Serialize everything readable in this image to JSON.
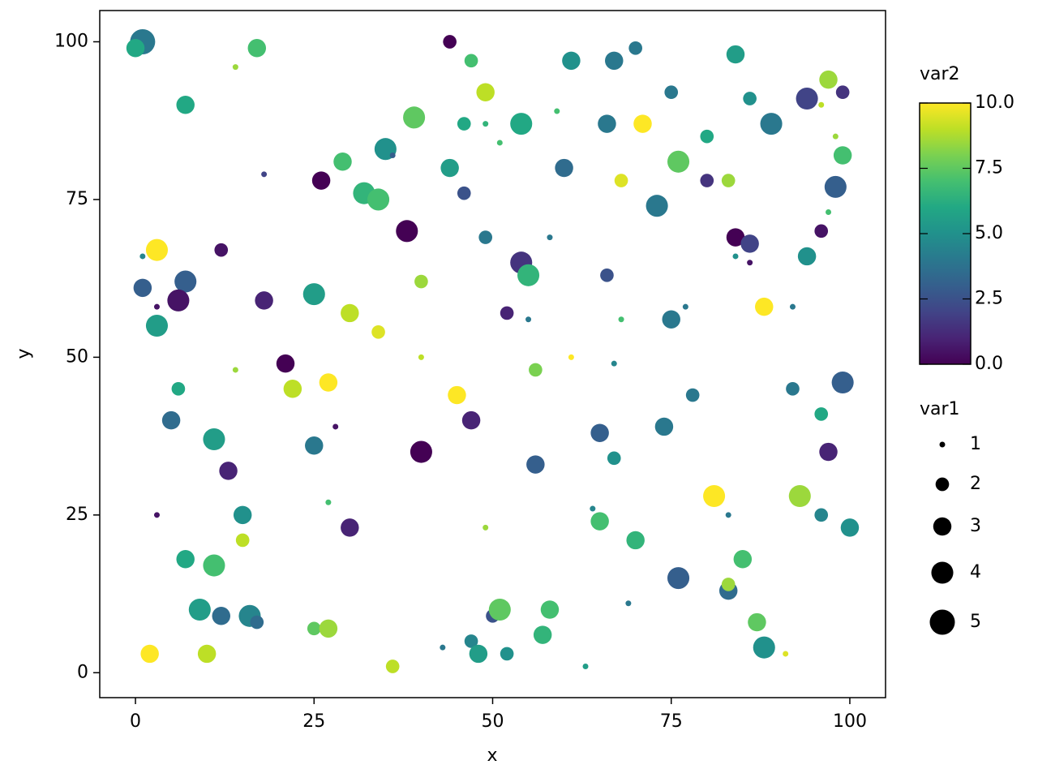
{
  "chart_data": {
    "type": "scatter",
    "x_label": "x",
    "y_label": "y",
    "xlim": [
      -5,
      105
    ],
    "ylim": [
      -3.95,
      104.95
    ],
    "xticks": [
      0,
      25,
      50,
      75,
      100
    ],
    "yticks": [
      0,
      25,
      50,
      75,
      100
    ],
    "colormap": "viridis",
    "x": [
      1,
      0,
      17,
      14,
      44,
      47,
      49,
      61,
      67,
      70,
      84,
      97,
      94,
      99,
      96,
      7,
      39,
      46,
      49,
      54,
      59,
      66,
      71,
      75,
      80,
      86,
      89,
      98,
      99,
      18,
      26,
      29,
      32,
      34,
      35,
      36,
      44,
      46,
      51,
      60,
      68,
      76,
      80,
      83,
      98,
      73,
      97,
      96,
      38,
      49,
      58,
      84,
      86,
      86,
      84,
      94,
      3,
      1,
      12,
      54,
      55,
      66,
      1,
      7,
      6,
      3,
      3,
      18,
      25,
      30,
      34,
      40,
      52,
      55,
      68,
      75,
      77,
      88,
      92,
      14,
      21,
      22,
      27,
      40,
      45,
      56,
      61,
      67,
      78,
      92,
      99,
      6,
      5,
      11,
      28,
      25,
      13,
      40,
      47,
      65,
      67,
      74,
      56,
      96,
      97,
      3,
      15,
      27,
      30,
      15,
      7,
      11,
      9,
      12,
      16,
      17,
      25,
      27,
      2,
      10,
      36,
      43,
      47,
      48,
      50,
      51,
      52,
      49,
      58,
      57,
      63,
      64,
      65,
      70,
      69,
      76,
      81,
      83,
      83,
      83,
      85,
      87,
      88,
      91,
      93,
      96,
      100
    ],
    "y": [
      100,
      99,
      99,
      96,
      100,
      97,
      92,
      97,
      97,
      99,
      98,
      94,
      91,
      92,
      90,
      90,
      88,
      87,
      87,
      87,
      89,
      87,
      87,
      92,
      85,
      91,
      87,
      85,
      82,
      79,
      78,
      81,
      76,
      75,
      83,
      82,
      80,
      76,
      84,
      80,
      78,
      81,
      78,
      78,
      77,
      74,
      73,
      70,
      70,
      69,
      69,
      69,
      68,
      65,
      66,
      66,
      67,
      66,
      67,
      65,
      63,
      63,
      61,
      62,
      59,
      58,
      55,
      59,
      60,
      57,
      54,
      62,
      57,
      56,
      56,
      56,
      58,
      58,
      58,
      48,
      49,
      45,
      46,
      50,
      44,
      48,
      50,
      49,
      44,
      45,
      46,
      45,
      40,
      37,
      39,
      36,
      32,
      35,
      40,
      38,
      34,
      39,
      33,
      41,
      35,
      25,
      25,
      27,
      23,
      21,
      18,
      17,
      10,
      9,
      9,
      8,
      7,
      7,
      3,
      3,
      1,
      4,
      5,
      3,
      9,
      10,
      3,
      23,
      10,
      6,
      1,
      26,
      24,
      21,
      11,
      15,
      28,
      25,
      13,
      14,
      18,
      8,
      4,
      3,
      28,
      25,
      23
    ],
    "size": [
      5,
      3,
      3,
      1,
      2,
      2,
      3,
      3,
      3,
      2,
      3,
      3,
      4,
      2,
      1,
      3,
      4,
      2,
      1,
      4,
      1,
      3,
      3,
      2,
      2,
      2,
      4,
      1,
      3,
      1,
      3,
      3,
      4,
      4,
      4,
      1,
      3,
      2,
      1,
      3,
      2,
      4,
      2,
      2,
      4,
      4,
      1,
      2,
      4,
      2,
      1,
      3,
      3,
      1,
      1,
      3,
      4,
      1,
      2,
      4,
      4,
      2,
      3,
      4,
      4,
      1,
      4,
      3,
      4,
      3,
      2,
      2,
      2,
      1,
      1,
      3,
      1,
      3,
      1,
      1,
      3,
      3,
      3,
      1,
      3,
      2,
      1,
      1,
      2,
      2,
      4,
      2,
      3,
      4,
      1,
      3,
      3,
      4,
      3,
      3,
      2,
      3,
      3,
      2,
      3,
      1,
      3,
      1,
      3,
      2,
      3,
      4,
      4,
      3,
      4,
      2,
      2,
      3,
      3,
      3,
      2,
      1,
      2,
      3,
      2,
      4,
      2,
      1,
      3,
      3,
      1,
      1,
      3,
      3,
      1,
      4,
      4,
      1,
      3,
      2,
      3,
      3,
      4,
      1,
      4,
      2,
      3
    ],
    "color": [
      4,
      6,
      7,
      8.5,
      0,
      7,
      9,
      5,
      4,
      4,
      5.5,
      8.5,
      2,
      1.5,
      9,
      6,
      7.5,
      6,
      6.5,
      6,
      7,
      4,
      10,
      4,
      6,
      5,
      4,
      8.5,
      7,
      2,
      0,
      7,
      6.5,
      7,
      5,
      3,
      5.5,
      2.5,
      7,
      3.5,
      9.5,
      7.5,
      1.5,
      8.5,
      3,
      4,
      7,
      0.5,
      0,
      4,
      4,
      0,
      2,
      0.5,
      5,
      5,
      10,
      4.5,
      0.5,
      1.5,
      6.5,
      2.5,
      3,
      3,
      0.5,
      0.5,
      5.5,
      1,
      5.5,
      9,
      9.5,
      8.5,
      1,
      4,
      7,
      4,
      4,
      10,
      4,
      8.5,
      0,
      9,
      10,
      9,
      10,
      8,
      10,
      4.5,
      4,
      4,
      3,
      6,
      3.5,
      5.5,
      0.5,
      4,
      1,
      0,
      1,
      3,
      5,
      4,
      3,
      6,
      1,
      0.5,
      5,
      7,
      1,
      9,
      6,
      7,
      5.5,
      3.5,
      4.5,
      3.5,
      7.5,
      8.5,
      10,
      9,
      9,
      4,
      4.5,
      5.5,
      2.5,
      7.5,
      5,
      8.5,
      7,
      6.5,
      5.5,
      4.5,
      7,
      6.5,
      4,
      3,
      10,
      4,
      3.5,
      8.5,
      7,
      7.5,
      5,
      9.5,
      8.5,
      4.5,
      5
    ],
    "colorbar": {
      "title": "var2",
      "lim": [
        0,
        10
      ],
      "ticks": [
        {
          "value": 0,
          "label": "0.0"
        },
        {
          "value": 2.5,
          "label": "2.5"
        },
        {
          "value": 5,
          "label": "5.0"
        },
        {
          "value": 7.5,
          "label": "7.5"
        },
        {
          "value": 10,
          "label": "10.0"
        }
      ]
    },
    "size_legend": {
      "title": "var1",
      "values": [
        1,
        2,
        3,
        4,
        5
      ]
    }
  }
}
